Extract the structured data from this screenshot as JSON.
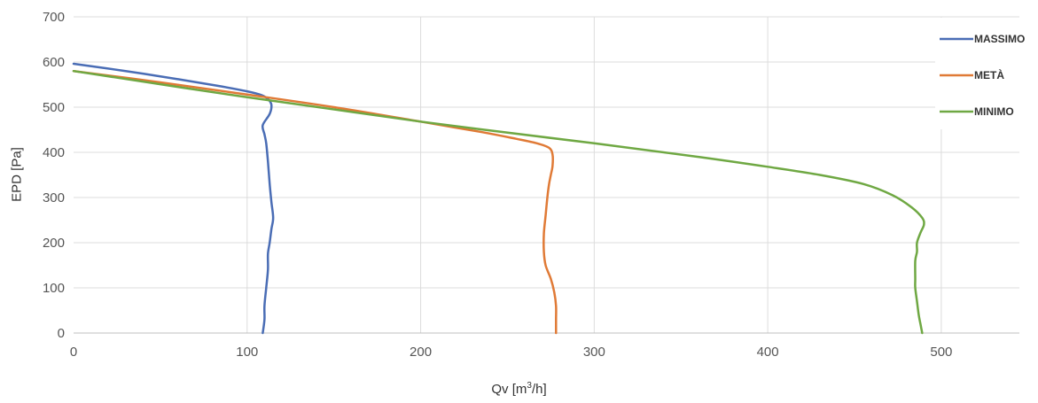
{
  "chart_data": {
    "type": "line",
    "xlabel_prefix": "Qv [m",
    "xlabel_sup": "3",
    "xlabel_suffix": "/h]",
    "ylabel": "EPD [Pa]",
    "xlim": [
      0,
      545
    ],
    "ylim": [
      0,
      700
    ],
    "xticks": [
      0,
      100,
      200,
      300,
      400,
      500
    ],
    "yticks": [
      0,
      100,
      200,
      300,
      400,
      500,
      600,
      700
    ],
    "grid": true,
    "legend_position": "right",
    "series": [
      {
        "name": "MASSIMO",
        "color": "#4a6db5",
        "points": [
          [
            0,
            596
          ],
          [
            30,
            580
          ],
          [
            60,
            562
          ],
          [
            85,
            546
          ],
          [
            100,
            535
          ],
          [
            108,
            527
          ],
          [
            112,
            518
          ],
          [
            114,
            505
          ],
          [
            113,
            485
          ],
          [
            109,
            460
          ],
          [
            110,
            440
          ],
          [
            111,
            420
          ],
          [
            112,
            380
          ],
          [
            113,
            330
          ],
          [
            114,
            290
          ],
          [
            115,
            255
          ],
          [
            114,
            230
          ],
          [
            113,
            200
          ],
          [
            112,
            175
          ],
          [
            112,
            140
          ],
          [
            111,
            100
          ],
          [
            110,
            60
          ],
          [
            110,
            30
          ],
          [
            109,
            0
          ]
        ]
      },
      {
        "name": "METÀ",
        "color": "#e07a36",
        "points": [
          [
            0,
            580
          ],
          [
            50,
            555
          ],
          [
            100,
            528
          ],
          [
            150,
            500
          ],
          [
            200,
            468
          ],
          [
            235,
            445
          ],
          [
            255,
            430
          ],
          [
            267,
            420
          ],
          [
            274,
            410
          ],
          [
            276,
            395
          ],
          [
            276,
            370
          ],
          [
            275,
            350
          ],
          [
            274,
            330
          ],
          [
            273,
            300
          ],
          [
            272,
            260
          ],
          [
            271,
            220
          ],
          [
            271,
            180
          ],
          [
            272,
            150
          ],
          [
            275,
            120
          ],
          [
            277,
            90
          ],
          [
            278,
            60
          ],
          [
            278,
            30
          ],
          [
            278,
            0
          ]
        ]
      },
      {
        "name": "MINIMO",
        "color": "#6fa843",
        "points": [
          [
            0,
            580
          ],
          [
            100,
            522
          ],
          [
            200,
            468
          ],
          [
            300,
            420
          ],
          [
            360,
            390
          ],
          [
            400,
            368
          ],
          [
            430,
            350
          ],
          [
            455,
            330
          ],
          [
            472,
            305
          ],
          [
            483,
            278
          ],
          [
            489,
            255
          ],
          [
            490,
            240
          ],
          [
            488,
            222
          ],
          [
            486,
            200
          ],
          [
            486,
            180
          ],
          [
            485,
            160
          ],
          [
            485,
            120
          ],
          [
            485,
            100
          ],
          [
            486,
            70
          ],
          [
            487,
            40
          ],
          [
            488,
            20
          ],
          [
            489,
            0
          ]
        ]
      }
    ]
  }
}
